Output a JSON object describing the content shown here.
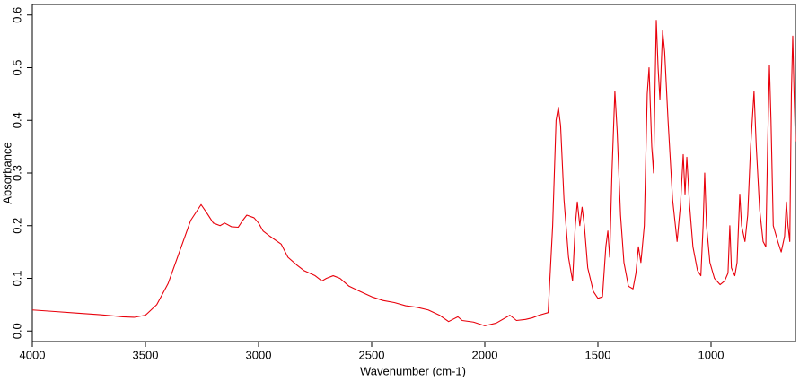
{
  "chart_data": {
    "type": "line",
    "xlabel": "Wavenumber (cm-1)",
    "ylabel": "Absorbance",
    "color": "#e8000b",
    "xlim": [
      4000,
      627
    ],
    "ylim": [
      -0.02,
      0.62
    ],
    "xticks": [
      4000,
      3500,
      3000,
      2500,
      2000,
      1500,
      1000
    ],
    "yticks": [
      {
        "value": 0,
        "label": "0.0"
      },
      0.1,
      0.2,
      0.3,
      0.4,
      0.5,
      0.6
    ],
    "x": [
      4000,
      3900,
      3800,
      3700,
      3600,
      3550,
      3500,
      3450,
      3400,
      3350,
      3300,
      3254,
      3230,
      3200,
      3170,
      3150,
      3120,
      3090,
      3070,
      3052,
      3020,
      3000,
      2980,
      2950,
      2900,
      2870,
      2830,
      2800,
      2750,
      2720,
      2700,
      2670,
      2640,
      2600,
      2550,
      2500,
      2450,
      2400,
      2350,
      2300,
      2250,
      2200,
      2160,
      2119,
      2100,
      2050,
      2000,
      1950,
      1889,
      1860,
      1820,
      1790,
      1760,
      1720,
      1700,
      1685,
      1675,
      1665,
      1650,
      1630,
      1612,
      1600,
      1591,
      1580,
      1570,
      1560,
      1545,
      1520,
      1500,
      1480,
      1465,
      1456,
      1448,
      1438,
      1425,
      1415,
      1400,
      1385,
      1365,
      1345,
      1332,
      1321,
      1310,
      1295,
      1282,
      1274,
      1262,
      1254,
      1248,
      1242,
      1234,
      1226,
      1214,
      1205,
      1190,
      1170,
      1150,
      1135,
      1123,
      1115,
      1107,
      1095,
      1080,
      1060,
      1045,
      1035,
      1028,
      1020,
      1005,
      985,
      960,
      940,
      925,
      917,
      910,
      895,
      885,
      873,
      865,
      850,
      838,
      825,
      810,
      800,
      785,
      770,
      758,
      750,
      742,
      735,
      725,
      705,
      690,
      675,
      667,
      660,
      652,
      645,
      639,
      633,
      627
    ],
    "values": [
      0.04,
      0.037,
      0.034,
      0.031,
      0.027,
      0.026,
      0.03,
      0.05,
      0.09,
      0.15,
      0.21,
      0.24,
      0.225,
      0.205,
      0.2,
      0.205,
      0.198,
      0.197,
      0.21,
      0.22,
      0.215,
      0.205,
      0.19,
      0.18,
      0.165,
      0.14,
      0.125,
      0.115,
      0.105,
      0.095,
      0.1,
      0.105,
      0.1,
      0.085,
      0.075,
      0.065,
      0.058,
      0.054,
      0.048,
      0.045,
      0.04,
      0.03,
      0.018,
      0.027,
      0.02,
      0.017,
      0.01,
      0.015,
      0.03,
      0.02,
      0.022,
      0.025,
      0.03,
      0.035,
      0.2,
      0.4,
      0.425,
      0.39,
      0.25,
      0.14,
      0.095,
      0.2,
      0.245,
      0.2,
      0.235,
      0.2,
      0.12,
      0.075,
      0.062,
      0.065,
      0.16,
      0.19,
      0.14,
      0.3,
      0.455,
      0.38,
      0.22,
      0.13,
      0.085,
      0.08,
      0.11,
      0.16,
      0.13,
      0.2,
      0.45,
      0.5,
      0.35,
      0.3,
      0.45,
      0.59,
      0.5,
      0.44,
      0.57,
      0.53,
      0.4,
      0.25,
      0.17,
      0.24,
      0.335,
      0.26,
      0.33,
      0.24,
      0.16,
      0.115,
      0.105,
      0.2,
      0.3,
      0.2,
      0.13,
      0.1,
      0.088,
      0.095,
      0.11,
      0.2,
      0.12,
      0.105,
      0.13,
      0.26,
      0.2,
      0.17,
      0.22,
      0.35,
      0.455,
      0.35,
      0.23,
      0.17,
      0.16,
      0.35,
      0.505,
      0.4,
      0.2,
      0.17,
      0.15,
      0.18,
      0.245,
      0.2,
      0.17,
      0.45,
      0.56,
      0.45,
      0.36
    ]
  }
}
